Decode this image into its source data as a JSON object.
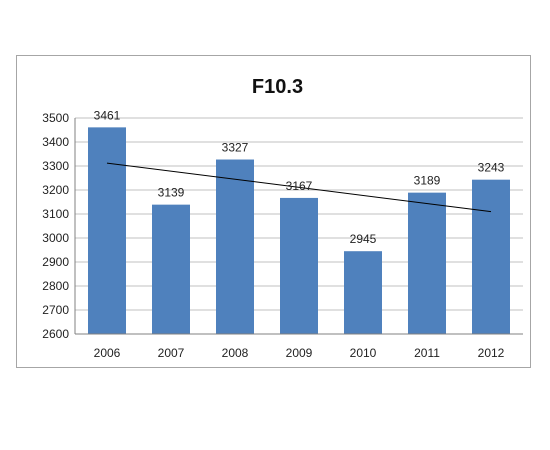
{
  "chart_data": {
    "type": "bar",
    "title": "F10.3",
    "xlabel": "",
    "ylabel": "",
    "categories": [
      "2006",
      "2007",
      "2008",
      "2009",
      "2010",
      "2011",
      "2012"
    ],
    "values": [
      3461,
      3139,
      3327,
      3167,
      2945,
      3189,
      3243
    ],
    "ylim": [
      2600,
      3500
    ],
    "yticks": [
      "2600",
      "2700",
      "2800",
      "2900",
      "3000",
      "3100",
      "3200",
      "3300",
      "3400",
      "3500"
    ],
    "data_labels": [
      "3461",
      "3139",
      "3327",
      "3167",
      "2945",
      "3189",
      "3243"
    ],
    "trendline": {
      "type": "linear",
      "start": 3312,
      "end": 3110
    },
    "grid": true,
    "legend": "none",
    "bar_color": "#4f81bd",
    "grid_color": "#c0c0c0",
    "trend_color": "#000000"
  }
}
